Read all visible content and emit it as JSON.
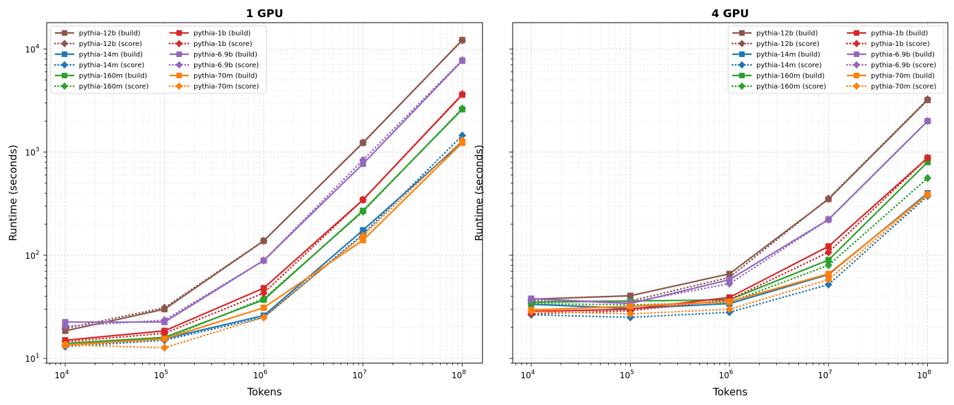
{
  "chart_data": [
    {
      "type": "line",
      "title": "1 GPU",
      "xlabel": "Tokens",
      "ylabel": "Runtime (seconds)",
      "x": [
        10000,
        100000,
        1000000,
        10000000,
        100000000
      ],
      "x_tick_labels": [
        {
          "base": "10",
          "exp": "4"
        },
        {
          "base": "10",
          "exp": "5"
        },
        {
          "base": "10",
          "exp": "6"
        },
        {
          "base": "10",
          "exp": "7"
        },
        {
          "base": "10",
          "exp": "8"
        }
      ],
      "y_tick_labels": [
        {
          "base": "10",
          "exp": "1"
        },
        {
          "base": "10",
          "exp": "2"
        },
        {
          "base": "10",
          "exp": "3"
        },
        {
          "base": "10",
          "exp": "4"
        }
      ],
      "xscale": "log",
      "yscale": "log",
      "xlim": [
        6500,
        160000000
      ],
      "ylim": [
        9,
        18000
      ],
      "grid": true,
      "legend_position": "top-left",
      "series": [
        {
          "name": "pythia-12b (build)",
          "style": "solid",
          "marker": "square",
          "color": "#8c564b",
          "values": [
            18.5,
            30,
            138,
            1230,
            12200
          ]
        },
        {
          "name": "pythia-12b (score)",
          "style": "dotted",
          "marker": "diamond",
          "color": "#8c564b",
          "values": [
            19.5,
            31,
            138,
            1240,
            12100
          ]
        },
        {
          "name": "pythia-14m (build)",
          "style": "solid",
          "marker": "square",
          "color": "#1f77b4",
          "values": [
            13.5,
            15.5,
            26,
            175,
            1250
          ]
        },
        {
          "name": "pythia-14m (score)",
          "style": "dotted",
          "marker": "diamond",
          "color": "#1f77b4",
          "values": [
            13,
            15,
            25,
            160,
            1450
          ]
        },
        {
          "name": "pythia-160m (build)",
          "style": "solid",
          "marker": "square",
          "color": "#2ca02c",
          "values": [
            14,
            16,
            37,
            270,
            2600
          ]
        },
        {
          "name": "pythia-160m (score)",
          "style": "dotted",
          "marker": "diamond",
          "color": "#2ca02c",
          "values": [
            13.5,
            15.5,
            38,
            265,
            2650
          ]
        },
        {
          "name": "pythia-1b (build)",
          "style": "solid",
          "marker": "square",
          "color": "#d62728",
          "values": [
            15,
            18.5,
            48,
            345,
            3600
          ]
        },
        {
          "name": "pythia-1b (score)",
          "style": "dotted",
          "marker": "diamond",
          "color": "#d62728",
          "values": [
            14.5,
            17.5,
            43,
            345,
            3650
          ]
        },
        {
          "name": "pythia-6.9b (build)",
          "style": "solid",
          "marker": "square",
          "color": "#9467bd",
          "values": [
            22.5,
            22.5,
            89,
            770,
            7700
          ]
        },
        {
          "name": "pythia-6.9b (score)",
          "style": "dotted",
          "marker": "diamond",
          "color": "#9467bd",
          "values": [
            20.5,
            23.5,
            89,
            840,
            7800
          ]
        },
        {
          "name": "pythia-70m (build)",
          "style": "solid",
          "marker": "square",
          "color": "#ff7f0e",
          "values": [
            13.5,
            15.5,
            31,
            140,
            1230
          ]
        },
        {
          "name": "pythia-70m (score)",
          "style": "dotted",
          "marker": "diamond",
          "color": "#ff7f0e",
          "values": [
            13.5,
            12.7,
            25,
            155,
            1300
          ]
        }
      ]
    },
    {
      "type": "line",
      "title": "4 GPU",
      "xlabel": "Tokens",
      "ylabel": "Runtime (seconds)",
      "x": [
        10000,
        100000,
        1000000,
        10000000,
        100000000
      ],
      "x_tick_labels": [
        {
          "base": "10",
          "exp": "4"
        },
        {
          "base": "10",
          "exp": "5"
        },
        {
          "base": "10",
          "exp": "6"
        },
        {
          "base": "10",
          "exp": "7"
        },
        {
          "base": "10",
          "exp": "8"
        }
      ],
      "y_tick_labels": [],
      "xscale": "log",
      "yscale": "log",
      "xlim": [
        6500,
        160000000
      ],
      "ylim": [
        9,
        18000
      ],
      "sharey": true,
      "grid": true,
      "legend_position": "top-right",
      "series": [
        {
          "name": "pythia-12b (build)",
          "style": "solid",
          "marker": "square",
          "color": "#8c564b",
          "values": [
            37.5,
            40.5,
            66,
            350,
            3200
          ]
        },
        {
          "name": "pythia-12b (score)",
          "style": "dotted",
          "marker": "diamond",
          "color": "#8c564b",
          "values": [
            36,
            36,
            61,
            355,
            3250
          ]
        },
        {
          "name": "pythia-14m (build)",
          "style": "solid",
          "marker": "square",
          "color": "#1f77b4",
          "values": [
            33.5,
            30.5,
            34,
            65,
            400
          ]
        },
        {
          "name": "pythia-14m (score)",
          "style": "dotted",
          "marker": "diamond",
          "color": "#1f77b4",
          "values": [
            26.5,
            25,
            28,
            52,
            375
          ]
        },
        {
          "name": "pythia-160m (build)",
          "style": "solid",
          "marker": "square",
          "color": "#2ca02c",
          "values": [
            35,
            36,
            37,
            90,
            800
          ]
        },
        {
          "name": "pythia-160m (score)",
          "style": "dotted",
          "marker": "diamond",
          "color": "#2ca02c",
          "values": [
            34,
            33,
            35,
            80,
            560
          ]
        },
        {
          "name": "pythia-1b (build)",
          "style": "solid",
          "marker": "square",
          "color": "#d62728",
          "values": [
            28.5,
            30,
            39,
            122,
            880
          ]
        },
        {
          "name": "pythia-1b (score)",
          "style": "dotted",
          "marker": "diamond",
          "color": "#d62728",
          "values": [
            27,
            29,
            37,
            107,
            880
          ]
        },
        {
          "name": "pythia-6.9b (build)",
          "style": "solid",
          "marker": "square",
          "color": "#9467bd",
          "values": [
            38,
            34,
            58,
            222,
            2000
          ]
        },
        {
          "name": "pythia-6.9b (score)",
          "style": "dotted",
          "marker": "diamond",
          "color": "#9467bd",
          "values": [
            37,
            35,
            53,
            222,
            2000
          ]
        },
        {
          "name": "pythia-70m (build)",
          "style": "solid",
          "marker": "square",
          "color": "#ff7f0e",
          "values": [
            29.5,
            32,
            35.5,
            66,
            390
          ]
        },
        {
          "name": "pythia-70m (score)",
          "style": "dotted",
          "marker": "diamond",
          "color": "#ff7f0e",
          "values": [
            28.5,
            27,
            30,
            58,
            385
          ]
        }
      ]
    }
  ]
}
